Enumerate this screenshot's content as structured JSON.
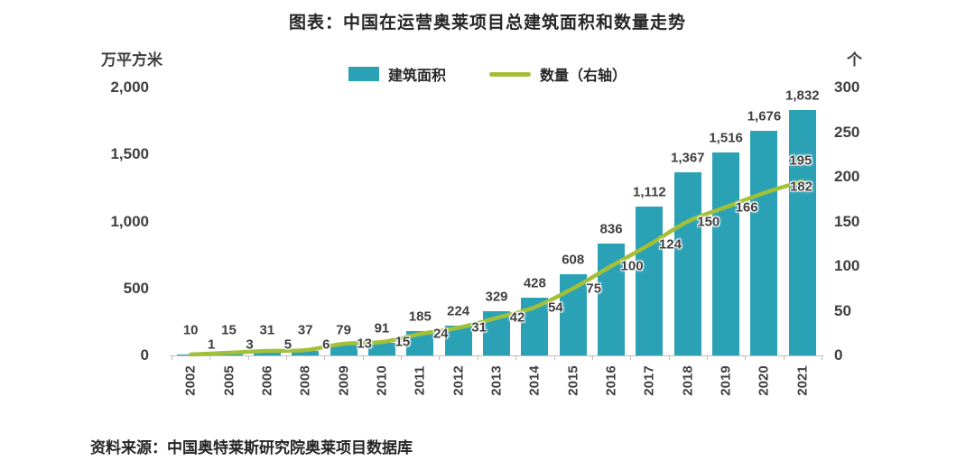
{
  "title": "图表：中国在运营奥莱项目总建筑面积和数量走势",
  "source": "资料来源：中国奥特莱斯研究院奥莱项目数据库",
  "chart_data": {
    "type": "bar",
    "subtype": "bar+line combo, line on secondary axis",
    "categories": [
      "2002",
      "2005",
      "2006",
      "2008",
      "2009",
      "2010",
      "2011",
      "2012",
      "2013",
      "2014",
      "2015",
      "2016",
      "2017",
      "2018",
      "2019",
      "2020",
      "2021"
    ],
    "series": [
      {
        "name": "建筑面积",
        "type": "bar",
        "axis": "left",
        "color": "#2BA1B5",
        "values": [
          10,
          15,
          31,
          37,
          79,
          91,
          185,
          224,
          329,
          428,
          608,
          836,
          1112,
          1367,
          1516,
          1676,
          1832
        ],
        "labels": [
          "10",
          "15",
          "31",
          "37",
          "79",
          "91",
          "185",
          "224",
          "329",
          "428",
          "608",
          "836",
          "1,112",
          "1,367",
          "1,516",
          "1,676",
          "1,832"
        ]
      },
      {
        "name": "数量（右轴）",
        "type": "line",
        "axis": "right",
        "color": "#A2C037",
        "values": [
          1,
          3,
          5,
          6,
          13,
          15,
          24,
          31,
          42,
          54,
          75,
          100,
          124,
          150,
          166,
          182,
          195
        ],
        "labels": [
          "1",
          "3",
          "5",
          "6",
          "13",
          "15",
          "24",
          "31",
          "42",
          "54",
          "75",
          "100",
          "124",
          "150",
          "166",
          "182",
          "195"
        ]
      }
    ],
    "left_axis": {
      "unit": "万平方米",
      "ticks": [
        "0",
        "500",
        "1,000",
        "1,500",
        "2,000"
      ],
      "min": 0,
      "max": 2000
    },
    "right_axis": {
      "unit": "个",
      "ticks": [
        "0",
        "50",
        "100",
        "150",
        "200",
        "250",
        "300"
      ],
      "min": 0,
      "max": 300
    },
    "legend": [
      {
        "label": "建筑面积",
        "swatch": "bar"
      },
      {
        "label": "数量（右轴）",
        "swatch": "line"
      }
    ],
    "grid": false,
    "legend_position": "top-center"
  }
}
